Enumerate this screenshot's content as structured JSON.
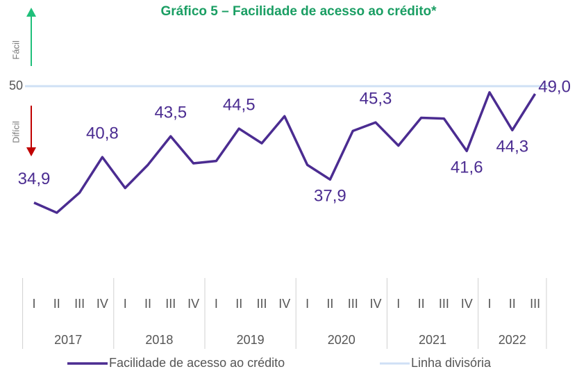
{
  "chart_data": {
    "type": "line",
    "title": "Gráfico 5  – Facilidade de acesso ao crédito*",
    "annotations": [
      "Fácil",
      "Difícil"
    ],
    "categories": [
      "I",
      "II",
      "III",
      "IV",
      "I",
      "II",
      "III",
      "IV",
      "I",
      "II",
      "III",
      "IV",
      "I",
      "II",
      "III",
      "IV",
      "I",
      "II",
      "III",
      "IV",
      "I",
      "II",
      "III"
    ],
    "years": [
      "2017",
      "2018",
      "2019",
      "2020",
      "2021",
      "2022"
    ],
    "series": [
      {
        "name": "Facilidade de acesso ao crédito",
        "color": "#4b2c91",
        "values": [
          34.9,
          33.6,
          36.2,
          40.8,
          36.8,
          39.8,
          43.5,
          40.0,
          40.3,
          44.5,
          42.6,
          46.1,
          39.8,
          37.9,
          44.2,
          45.3,
          42.3,
          45.9,
          45.8,
          41.6,
          49.2,
          44.3,
          49.0
        ],
        "value_labels": [
          "34,9",
          null,
          null,
          "40,8",
          null,
          null,
          "43,5",
          null,
          null,
          "44,5",
          null,
          null,
          null,
          "37,9",
          null,
          "45,3",
          null,
          null,
          null,
          "41,6",
          null,
          "44,3",
          "49,0"
        ]
      }
    ],
    "reference_line": {
      "name": "Linha divisória",
      "value": 50,
      "color": "#cfe0f5"
    },
    "ylim": [
      25,
      55
    ],
    "yticks": [
      50
    ]
  }
}
